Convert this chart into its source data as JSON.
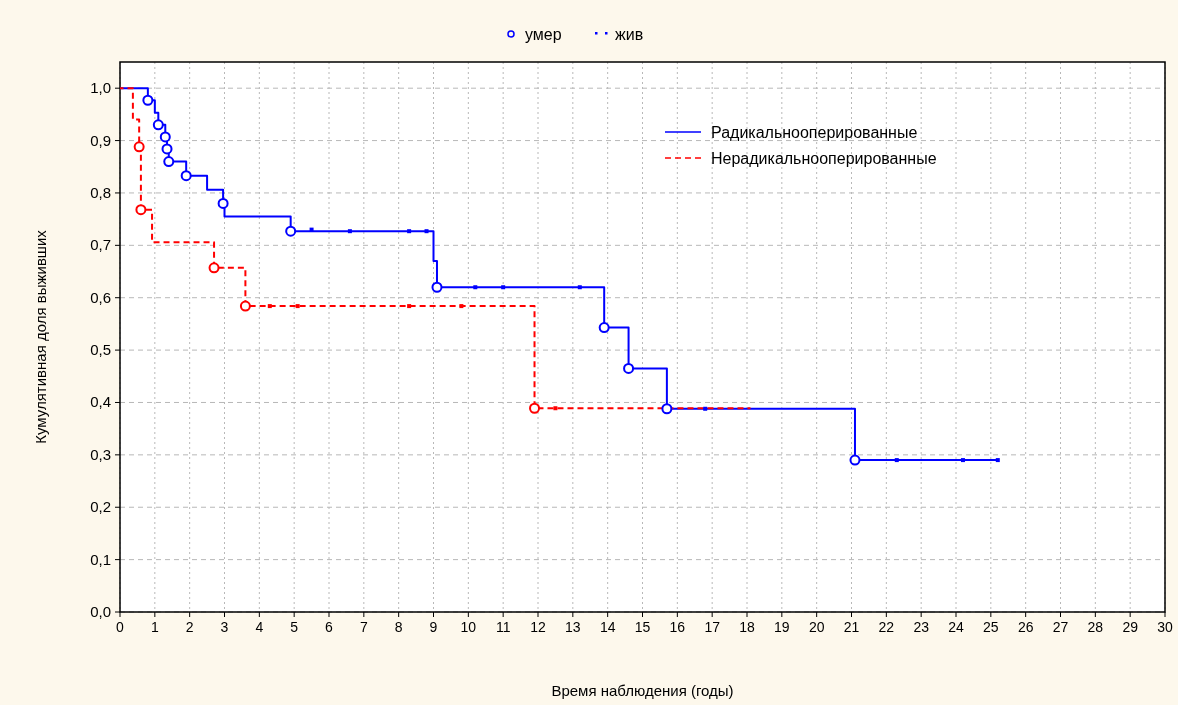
{
  "chart_data": {
    "type": "step",
    "xlabel": "Время наблюдения (годы)",
    "ylabel": "Кумулятивная доля выживших",
    "xlim": [
      0,
      30
    ],
    "ylim": [
      0,
      1.05
    ],
    "xticks": [
      0,
      1,
      2,
      3,
      4,
      5,
      6,
      7,
      8,
      9,
      10,
      11,
      12,
      13,
      14,
      15,
      16,
      17,
      18,
      19,
      20,
      21,
      22,
      23,
      24,
      25,
      26,
      27,
      28,
      29,
      30
    ],
    "yticks": [
      {
        "value": 0,
        "label": "0,0"
      },
      {
        "value": 0.1,
        "label": "0,1"
      },
      {
        "value": 0.2,
        "label": "0,2"
      },
      {
        "value": 0.3,
        "label": "0,3"
      },
      {
        "value": 0.4,
        "label": "0,4"
      },
      {
        "value": 0.5,
        "label": "0,5"
      },
      {
        "value": 0.6,
        "label": "0,6"
      },
      {
        "value": 0.7,
        "label": "0,7"
      },
      {
        "value": 0.8,
        "label": "0,8"
      },
      {
        "value": 0.9,
        "label": "0,9"
      },
      {
        "value": 1.0,
        "label": "1,0"
      }
    ],
    "grid": true,
    "legend": "top right",
    "series": [
      {
        "name": "Радикальнооперированные",
        "color": "#0000ff",
        "line_style": "solid",
        "marker": "none",
        "x": [
          0,
          0.8,
          1.0,
          1.1,
          1.3,
          1.35,
          1.4,
          1.9,
          2.5,
          2.96,
          3.0,
          4.9,
          9.0,
          9.1,
          13.9,
          14.6,
          15.7,
          21.1,
          25.2
        ],
        "values": [
          1.0,
          0.977,
          0.953,
          0.93,
          0.907,
          0.884,
          0.86,
          0.833,
          0.806,
          0.78,
          0.755,
          0.727,
          0.67,
          0.62,
          0.543,
          0.465,
          0.388,
          0.29,
          0.29
        ]
      },
      {
        "name": "Нерадикальнооперированные",
        "color": "#ff0000",
        "line_style": "dashed",
        "marker": "none",
        "x": [
          0,
          0.37,
          0.55,
          0.6,
          0.92,
          2.7,
          3.6,
          11.9,
          18.1
        ],
        "values": [
          1.0,
          0.94,
          0.888,
          0.768,
          0.706,
          0.657,
          0.584,
          0.389,
          0.389
        ]
      },
      {
        "name": "умер",
        "type": "scatter",
        "color": "#0000ff",
        "marker": "circle",
        "x": [
          0.8,
          1.1,
          1.3,
          1.35,
          1.4,
          1.9,
          2.96,
          4.9,
          9.1,
          13.9,
          14.6,
          15.7,
          21.1
        ],
        "values": [
          0.977,
          0.93,
          0.907,
          0.884,
          0.86,
          0.833,
          0.78,
          0.727,
          0.62,
          0.543,
          0.465,
          0.388,
          0.29
        ]
      },
      {
        "type": "scatter",
        "color": "#ff0000",
        "marker": "circle",
        "x": [
          0.55,
          0.6,
          2.7,
          3.6,
          11.9
        ],
        "values": [
          0.888,
          0.768,
          0.657,
          0.584,
          0.389
        ]
      },
      {
        "name": "жив",
        "type": "scatter",
        "color": "#0000ff",
        "marker": "square",
        "x": [
          5.5,
          6.6,
          8.3,
          8.8,
          10.2,
          11.0,
          13.2,
          16.8,
          22.3,
          24.2,
          25.2
        ],
        "values": [
          0.73,
          0.727,
          0.727,
          0.727,
          0.62,
          0.62,
          0.62,
          0.388,
          0.29,
          0.29,
          0.29
        ]
      },
      {
        "type": "scatter",
        "color": "#ff0000",
        "marker": "square",
        "x": [
          4.3,
          5.1,
          8.3,
          9.8,
          12.5
        ],
        "values": [
          0.584,
          0.584,
          0.584,
          0.584,
          0.389
        ]
      }
    ]
  }
}
